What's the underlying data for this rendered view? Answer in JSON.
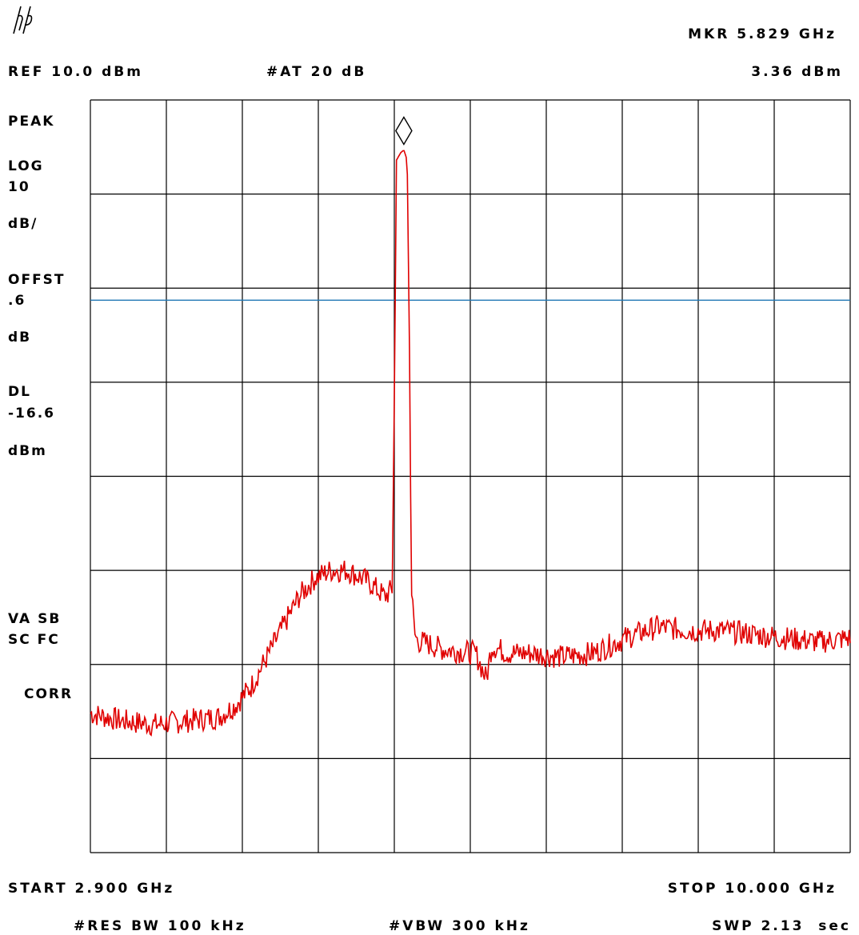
{
  "header": {
    "marker_label": "MKR 5.829 GHz",
    "ref_level": "REF 10.0 dBm",
    "attenuation": "#AT 20 dB",
    "marker_amplitude": "3.36 dBm"
  },
  "side_annotations": {
    "detector": "PEAK",
    "scale_line1": "LOG",
    "scale_line2": "10",
    "scale_line3": "dB/",
    "offset_line1": "OFFST",
    "offset_line2": ".6",
    "offset_line3": "dB",
    "display_line1": "DL",
    "display_line2": "-16.6",
    "display_line3": "dBm",
    "flags_line1": "VA SB",
    "flags_line2": "SC FC",
    "correction": "CORR"
  },
  "footer": {
    "start": "START 2.900 GHz",
    "stop": "STOP 10.000 GHz",
    "res_bw": "#RES BW 100 kHz",
    "vbw": "#VBW 300 kHz",
    "sweep": "SWP 2.13  sec"
  },
  "colors": {
    "trace": "#e00000",
    "display_line": "#1f77b4",
    "grid": "#000000"
  },
  "icons": {
    "logo": "hp-logo-icon",
    "marker": "diamond-marker-icon"
  },
  "chart_data": {
    "type": "line",
    "grid": true,
    "xlim": [
      2.9,
      10.0
    ],
    "ylim": [
      -90,
      10
    ],
    "x_unit": "GHz",
    "y_unit": "dBm",
    "display_line": -16.6,
    "marker": {
      "x": 5.829,
      "y": 3.36
    },
    "series": [
      {
        "x": [
          2.9,
          3.2,
          3.5,
          3.8,
          4.1,
          4.25,
          4.4,
          4.55,
          4.7,
          4.85,
          5.0,
          5.15,
          5.3,
          5.5,
          5.65,
          5.72,
          5.74,
          5.76,
          5.8,
          5.829,
          5.86,
          5.88,
          5.9,
          5.93,
          5.96,
          6.0,
          6.2,
          6.5,
          6.6,
          6.65,
          6.8,
          7.0,
          7.3,
          7.6,
          7.9,
          8.2,
          8.5,
          8.8,
          9.1,
          9.4,
          9.7,
          10.0
        ],
        "y": [
          -71.5,
          -72.5,
          -73.0,
          -72.5,
          -72.0,
          -70.5,
          -68.0,
          -64.0,
          -60.0,
          -56.0,
          -53.5,
          -52.5,
          -52.5,
          -54.0,
          -56.0,
          -55.0,
          -30.0,
          2.0,
          3.0,
          3.36,
          2.0,
          -20.0,
          -55.0,
          -61.0,
          -62.0,
          -62.0,
          -63.0,
          -63.5,
          -67.0,
          -62.5,
          -63.5,
          -63.5,
          -64.0,
          -63.5,
          -61.5,
          -60.0,
          -60.5,
          -60.5,
          -61.0,
          -61.5,
          -62.0,
          -61.5
        ]
      }
    ]
  }
}
